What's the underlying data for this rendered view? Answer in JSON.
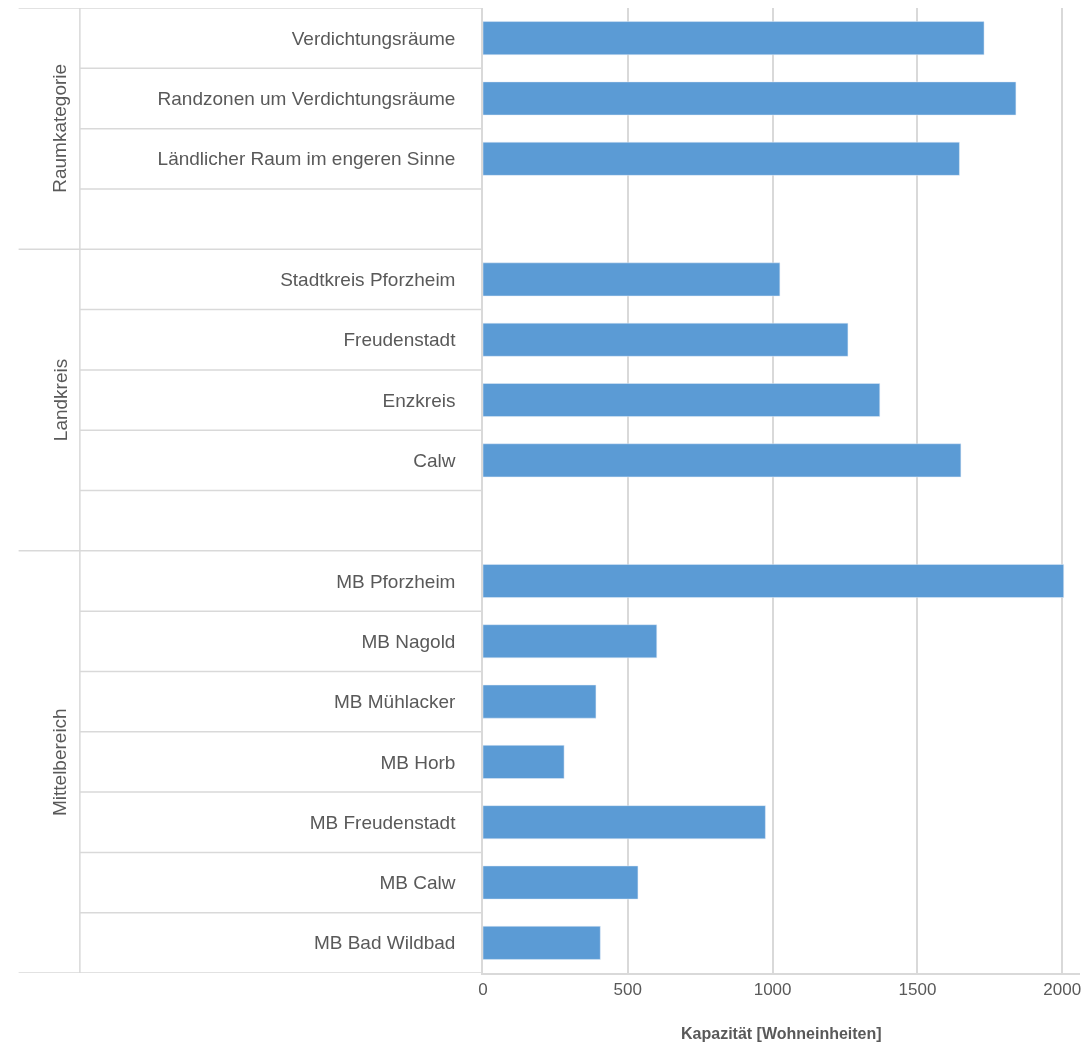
{
  "chart_data": {
    "type": "bar",
    "orientation": "horizontal",
    "xlabel": "Kapazität [Wohneinheiten]",
    "categories": [
      "Verdichtungsräume",
      "Randzonen um Verdichtungsräume",
      "Ländlicher Raum im engeren Sinne",
      null,
      "Stadtkreis Pforzheim",
      "Freudenstadt",
      "Enzkreis",
      "Calw",
      null,
      "MB Pforzheim",
      "MB Nagold",
      "MB Mühlacker",
      "MB Horb",
      "MB Freudenstadt",
      "MB Calw",
      "MB Bad Wildbad"
    ],
    "values": [
      1730,
      1840,
      1645,
      null,
      1025,
      1260,
      1370,
      1650,
      null,
      2005,
      600,
      390,
      280,
      975,
      535,
      405
    ],
    "color": "#5b9bd5",
    "annotations": [
      "Raumkategorie",
      "Landkreis",
      "Mittelbereich"
    ],
    "xlim": [
      0,
      2060
    ],
    "xticks": [
      0,
      500,
      1000,
      1500,
      2000
    ],
    "grid": "x",
    "legend": false
  }
}
